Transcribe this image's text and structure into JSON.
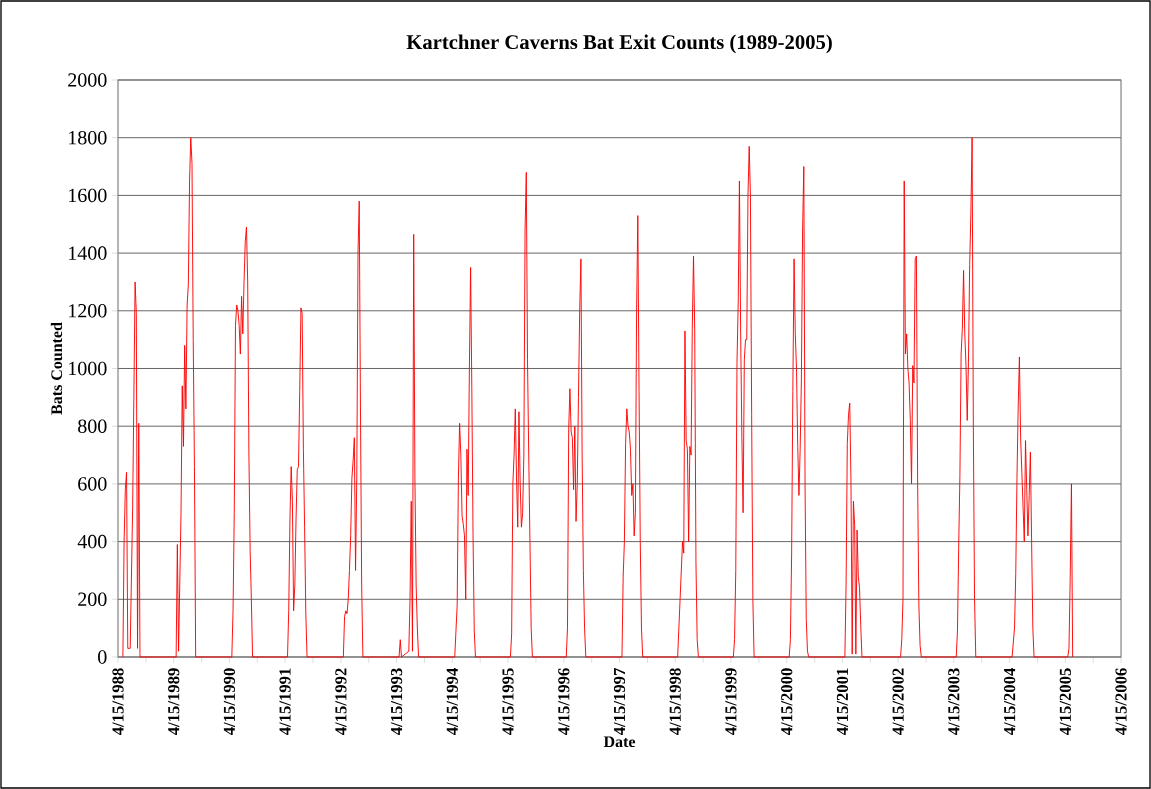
{
  "chart_data": {
    "type": "line",
    "title": "Kartchner Caverns Bat Exit Counts (1989-2005)",
    "xlabel": "Date",
    "ylabel": "Bats Counted",
    "color": "#ff0000",
    "grid": "y",
    "line_style": "solid",
    "xlim": [
      "1988-04-15",
      "2006-04-15"
    ],
    "xticks": [
      {
        "value": "1988-04-15",
        "label": "4/15/1988"
      },
      {
        "value": "1988-10-15",
        "label": null
      },
      {
        "value": "1989-04-15",
        "label": "4/15/1989"
      },
      {
        "value": "1989-10-15",
        "label": null
      },
      {
        "value": "1990-04-15",
        "label": "4/15/1990"
      },
      {
        "value": "1990-10-15",
        "label": null
      },
      {
        "value": "1991-04-15",
        "label": "4/15/1991"
      },
      {
        "value": "1991-10-15",
        "label": null
      },
      {
        "value": "1992-04-15",
        "label": "4/15/1992"
      },
      {
        "value": "1992-10-15",
        "label": null
      },
      {
        "value": "1993-04-15",
        "label": "4/15/1993"
      },
      {
        "value": "1993-10-15",
        "label": null
      },
      {
        "value": "1994-04-15",
        "label": "4/15/1994"
      },
      {
        "value": "1994-10-15",
        "label": null
      },
      {
        "value": "1995-04-15",
        "label": "4/15/1995"
      },
      {
        "value": "1995-10-15",
        "label": null
      },
      {
        "value": "1996-04-15",
        "label": "4/15/1996"
      },
      {
        "value": "1996-10-15",
        "label": null
      },
      {
        "value": "1997-04-15",
        "label": "4/15/1997"
      },
      {
        "value": "1997-10-15",
        "label": null
      },
      {
        "value": "1998-04-15",
        "label": "4/15/1998"
      },
      {
        "value": "1998-10-15",
        "label": null
      },
      {
        "value": "1999-04-15",
        "label": "4/15/1999"
      },
      {
        "value": "1999-10-15",
        "label": null
      },
      {
        "value": "2000-04-15",
        "label": "4/15/2000"
      },
      {
        "value": "2000-10-15",
        "label": null
      },
      {
        "value": "2001-04-15",
        "label": "4/15/2001"
      },
      {
        "value": "2001-10-15",
        "label": null
      },
      {
        "value": "2002-04-15",
        "label": "4/15/2002"
      },
      {
        "value": "2002-10-15",
        "label": null
      },
      {
        "value": "2003-04-15",
        "label": "4/15/2003"
      },
      {
        "value": "2003-10-15",
        "label": null
      },
      {
        "value": "2004-04-15",
        "label": "4/15/2004"
      },
      {
        "value": "2004-10-15",
        "label": null
      },
      {
        "value": "2005-04-15",
        "label": "4/15/2005"
      },
      {
        "value": "2005-10-15",
        "label": null
      },
      {
        "value": "2006-04-15",
        "label": "4/15/2006"
      }
    ],
    "ylim": [
      0,
      2000
    ],
    "yticks": [
      0,
      200,
      400,
      600,
      800,
      1000,
      1200,
      1400,
      1600,
      1800,
      2000
    ],
    "x": [
      "1988-05-17",
      "1988-05-25",
      "1988-06-02",
      "1988-06-10",
      "1988-06-18",
      "1988-07-04",
      "1988-07-20",
      "1988-07-28",
      "1988-08-05",
      "1988-08-13",
      "1988-08-21",
      "1988-08-29",
      "1988-09-06",
      "1989-05-01",
      "1989-05-09",
      "1989-05-17",
      "1989-06-02",
      "1989-06-10",
      "1989-06-18",
      "1989-06-26",
      "1989-07-04",
      "1989-07-12",
      "1989-07-20",
      "1989-07-28",
      "1989-08-05",
      "1989-08-13",
      "1989-08-21",
      "1989-08-29",
      "1989-09-06",
      "1990-05-01",
      "1990-05-09",
      "1990-05-17",
      "1990-05-25",
      "1990-06-02",
      "1990-06-10",
      "1990-06-18",
      "1990-06-26",
      "1990-07-04",
      "1990-07-12",
      "1990-07-20",
      "1990-07-28",
      "1990-08-05",
      "1990-08-13",
      "1990-08-21",
      "1990-08-29",
      "1990-09-06",
      "1990-09-14",
      "1991-05-01",
      "1991-05-09",
      "1991-05-17",
      "1991-05-25",
      "1991-06-02",
      "1991-06-10",
      "1991-06-18",
      "1991-06-26",
      "1991-07-04",
      "1991-07-12",
      "1991-07-20",
      "1991-07-28",
      "1991-08-05",
      "1991-08-13",
      "1991-08-21",
      "1991-08-29",
      "1991-09-06",
      "1992-05-01",
      "1992-05-09",
      "1992-05-17",
      "1992-05-25",
      "1992-06-02",
      "1992-06-10",
      "1992-06-18",
      "1992-06-26",
      "1992-07-04",
      "1992-07-12",
      "1992-07-20",
      "1992-07-28",
      "1992-08-05",
      "1992-08-13",
      "1992-08-21",
      "1992-08-29",
      "1992-09-06",
      "1993-05-01",
      "1993-05-09",
      "1993-05-17",
      "1993-06-10",
      "1993-07-04",
      "1993-07-12",
      "1993-07-20",
      "1993-07-28",
      "1993-08-05",
      "1993-08-13",
      "1993-08-21",
      "1993-08-29",
      "1993-09-06",
      "1994-05-01",
      "1994-05-09",
      "1994-05-17",
      "1994-05-25",
      "1994-06-02",
      "1994-06-10",
      "1994-06-18",
      "1994-06-26",
      "1994-07-04",
      "1994-07-12",
      "1994-07-20",
      "1994-07-28",
      "1994-08-05",
      "1994-08-13",
      "1994-08-21",
      "1994-08-29",
      "1994-09-06",
      "1994-09-14",
      "1995-05-01",
      "1995-05-09",
      "1995-05-17",
      "1995-05-25",
      "1995-06-02",
      "1995-06-10",
      "1995-06-18",
      "1995-06-26",
      "1995-07-04",
      "1995-07-12",
      "1995-07-20",
      "1995-07-28",
      "1995-08-05",
      "1995-08-13",
      "1995-08-21",
      "1995-08-29",
      "1995-09-06",
      "1995-09-14",
      "1995-09-22",
      "1996-05-01",
      "1996-05-09",
      "1996-05-17",
      "1996-05-25",
      "1996-06-02",
      "1996-06-10",
      "1996-06-18",
      "1996-06-26",
      "1996-07-04",
      "1996-07-12",
      "1996-07-20",
      "1996-07-28",
      "1996-08-05",
      "1996-08-13",
      "1996-08-21",
      "1996-08-29",
      "1996-09-06",
      "1997-05-01",
      "1997-05-09",
      "1997-05-17",
      "1997-05-25",
      "1997-06-02",
      "1997-06-10",
      "1997-06-18",
      "1997-06-26",
      "1997-07-04",
      "1997-07-12",
      "1997-07-20",
      "1997-07-28",
      "1997-08-05",
      "1997-08-13",
      "1997-08-21",
      "1997-08-29",
      "1997-09-06",
      "1997-09-14",
      "1998-05-01",
      "1998-06-02",
      "1998-06-10",
      "1998-06-18",
      "1998-06-26",
      "1998-07-04",
      "1998-07-12",
      "1998-07-20",
      "1998-07-28",
      "1998-08-05",
      "1998-08-13",
      "1998-08-21",
      "1998-08-29",
      "1998-09-06",
      "1998-09-14",
      "1999-05-01",
      "1999-05-09",
      "1999-05-17",
      "1999-05-25",
      "1999-06-02",
      "1999-06-10",
      "1999-06-18",
      "1999-06-26",
      "1999-07-04",
      "1999-07-12",
      "1999-07-20",
      "1999-07-28",
      "1999-08-05",
      "1999-08-13",
      "1999-08-21",
      "1999-08-29",
      "1999-09-06",
      "1999-09-14",
      "2000-05-01",
      "2000-05-09",
      "2000-05-17",
      "2000-05-25",
      "2000-06-02",
      "2000-06-10",
      "2000-06-18",
      "2000-06-26",
      "2000-07-04",
      "2000-07-12",
      "2000-07-20",
      "2000-07-28",
      "2000-08-05",
      "2000-08-13",
      "2000-08-21",
      "2000-08-29",
      "2000-09-06",
      "2001-05-01",
      "2001-05-09",
      "2001-05-17",
      "2001-05-25",
      "2001-06-02",
      "2001-06-10",
      "2001-06-18",
      "2001-06-26",
      "2001-07-04",
      "2001-07-12",
      "2001-07-20",
      "2001-07-28",
      "2001-08-05",
      "2001-08-13",
      "2001-08-21",
      "2002-05-01",
      "2002-05-09",
      "2002-05-17",
      "2002-05-25",
      "2002-06-02",
      "2002-06-10",
      "2002-06-18",
      "2002-06-26",
      "2002-07-04",
      "2002-07-12",
      "2002-07-20",
      "2002-07-28",
      "2002-08-05",
      "2002-08-13",
      "2002-08-21",
      "2002-08-29",
      "2002-09-06",
      "2002-09-14",
      "2003-05-01",
      "2003-05-09",
      "2003-05-17",
      "2003-05-25",
      "2003-06-02",
      "2003-06-10",
      "2003-06-18",
      "2003-06-26",
      "2003-07-04",
      "2003-07-12",
      "2003-07-20",
      "2003-07-28",
      "2003-08-05",
      "2003-08-13",
      "2003-08-21",
      "2003-08-29",
      "2003-09-06",
      "2004-05-01",
      "2004-05-17",
      "2004-05-25",
      "2004-06-02",
      "2004-06-10",
      "2004-06-18",
      "2004-06-26",
      "2004-07-04",
      "2004-07-12",
      "2004-07-20",
      "2004-07-28",
      "2004-08-05",
      "2004-08-13",
      "2004-08-21",
      "2004-08-29",
      "2004-09-06",
      "2004-09-14",
      "2004-09-22",
      "2005-05-01",
      "2005-05-09",
      "2005-05-17",
      "2005-05-25",
      "2005-06-02"
    ],
    "values": [
      0,
      400,
      580,
      640,
      30,
      30,
      520,
      900,
      1300,
      1190,
      30,
      810,
      0,
      0,
      390,
      20,
      500,
      940,
      730,
      1080,
      860,
      1220,
      1290,
      1650,
      1800,
      1710,
      1100,
      660,
      0,
      0,
      160,
      500,
      1150,
      1220,
      1200,
      1150,
      1050,
      1250,
      1120,
      1300,
      1440,
      1490,
      1300,
      700,
      370,
      200,
      0,
      0,
      160,
      480,
      660,
      540,
      160,
      250,
      480,
      650,
      660,
      920,
      1210,
      1190,
      720,
      450,
      150,
      0,
      0,
      140,
      160,
      150,
      200,
      300,
      420,
      620,
      680,
      760,
      300,
      620,
      1400,
      1580,
      870,
      250,
      0,
      0,
      60,
      0,
      10,
      20,
      200,
      540,
      20,
      1465,
      620,
      250,
      100,
      0,
      0,
      90,
      180,
      620,
      810,
      700,
      490,
      460,
      420,
      200,
      720,
      560,
      1000,
      1350,
      930,
      420,
      90,
      0,
      0,
      80,
      600,
      700,
      860,
      620,
      450,
      850,
      600,
      450,
      500,
      700,
      1480,
      1680,
      1030,
      700,
      400,
      100,
      0,
      0,
      100,
      790,
      930,
      780,
      760,
      580,
      800,
      470,
      600,
      900,
      1200,
      1380,
      700,
      300,
      100,
      0,
      0,
      280,
      400,
      740,
      860,
      800,
      780,
      720,
      560,
      600,
      420,
      500,
      1200,
      1530,
      920,
      400,
      100,
      0,
      0,
      400,
      360,
      1130,
      750,
      720,
      400,
      730,
      700,
      1140,
      1390,
      1130,
      330,
      60,
      0,
      0,
      60,
      300,
      1020,
      1230,
      1650,
      1120,
      760,
      500,
      1030,
      1100,
      1100,
      1600,
      1770,
      1600,
      840,
      200,
      0,
      0,
      60,
      350,
      920,
      1380,
      1120,
      1000,
      730,
      560,
      720,
      960,
      1480,
      1700,
      600,
      130,
      20,
      0,
      0,
      250,
      740,
      840,
      880,
      610,
      10,
      540,
      460,
      10,
      440,
      280,
      240,
      110,
      0,
      0,
      60,
      200,
      1650,
      1050,
      1120,
      1000,
      950,
      820,
      600,
      1010,
      950,
      1380,
      1390,
      600,
      180,
      40,
      0,
      0,
      90,
      380,
      630,
      1050,
      1140,
      1340,
      1120,
      1010,
      820,
      1020,
      1360,
      1540,
      1800,
      800,
      200,
      0,
      0,
      100,
      290,
      620,
      870,
      1040,
      760,
      640,
      520,
      400,
      750,
      580,
      420,
      560,
      710,
      400,
      100,
      0,
      0,
      30,
      280,
      600,
      0
    ]
  }
}
